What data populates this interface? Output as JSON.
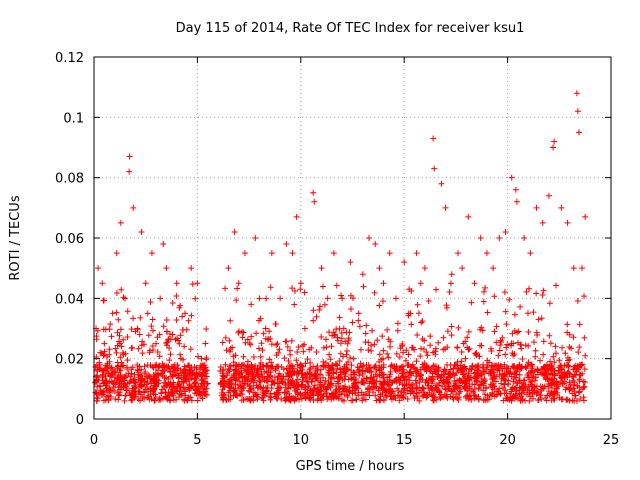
{
  "chart_data": {
    "type": "scatter",
    "title": "Day 115 of 2014, Rate Of TEC Index for receiver ksu1",
    "xlabel": "GPS time / hours",
    "ylabel": "ROTI / TECUs",
    "xlim": [
      0,
      25
    ],
    "ylim": [
      0,
      0.12
    ],
    "x_ticks": [
      "0",
      "5",
      "10",
      "15",
      "20",
      "25"
    ],
    "y_ticks": [
      "0",
      "0.02",
      "0.04",
      "0.06",
      "0.08",
      "0.1",
      "0.12"
    ],
    "grid": true,
    "marker": "plus",
    "series_color": "#ff0000",
    "data_gap_hours": [
      5.5,
      6.1
    ],
    "series": [
      {
        "x": [
          0.05,
          0.1,
          0.2,
          0.3,
          0.4,
          0.5,
          0.7,
          0.9,
          1.1,
          1.3,
          1.5,
          1.7,
          1.72,
          1.9,
          2.1,
          2.3,
          2.5,
          2.6,
          2.8,
          3.0,
          3.2,
          3.35,
          3.5,
          3.8,
          4.0,
          4.2,
          4.4,
          4.7,
          5.0,
          5.2,
          5.4,
          6.5,
          6.8,
          7.0,
          7.3,
          7.6,
          7.8,
          8.0,
          8.3,
          8.6,
          9.0,
          9.3,
          9.6,
          9.8,
          10.0,
          10.2,
          10.6,
          10.65,
          11.0,
          11.3,
          11.6,
          12.0,
          12.4,
          12.8,
          13.0,
          13.3,
          13.6,
          13.8,
          14.0,
          14.3,
          14.6,
          15.0,
          15.3,
          15.6,
          15.8,
          16.0,
          16.4,
          16.45,
          16.8,
          17.0,
          17.3,
          17.6,
          17.8,
          18.1,
          18.4,
          18.7,
          19.0,
          19.3,
          19.6,
          19.9,
          20.2,
          20.4,
          20.45,
          20.8,
          21.1,
          21.4,
          21.7,
          22.0,
          22.2,
          22.25,
          22.6,
          22.9,
          23.2,
          23.35,
          23.4,
          23.45,
          23.6,
          23.75
        ],
        "y": [
          0.012,
          0.03,
          0.05,
          0.022,
          0.045,
          0.025,
          0.015,
          0.035,
          0.055,
          0.065,
          0.04,
          0.082,
          0.087,
          0.07,
          0.03,
          0.062,
          0.045,
          0.035,
          0.055,
          0.025,
          0.04,
          0.058,
          0.05,
          0.028,
          0.045,
          0.02,
          0.035,
          0.05,
          0.045,
          0.02,
          0.015,
          0.05,
          0.062,
          0.045,
          0.055,
          0.038,
          0.06,
          0.04,
          0.03,
          0.055,
          0.04,
          0.058,
          0.055,
          0.067,
          0.045,
          0.03,
          0.075,
          0.072,
          0.05,
          0.04,
          0.055,
          0.04,
          0.052,
          0.035,
          0.048,
          0.06,
          0.058,
          0.05,
          0.045,
          0.055,
          0.04,
          0.052,
          0.035,
          0.055,
          0.045,
          0.05,
          0.093,
          0.083,
          0.078,
          0.07,
          0.048,
          0.055,
          0.05,
          0.067,
          0.045,
          0.06,
          0.055,
          0.05,
          0.06,
          0.062,
          0.08,
          0.076,
          0.072,
          0.06,
          0.055,
          0.07,
          0.065,
          0.074,
          0.09,
          0.092,
          0.07,
          0.065,
          0.05,
          0.108,
          0.102,
          0.095,
          0.05,
          0.067
        ]
      }
    ]
  }
}
